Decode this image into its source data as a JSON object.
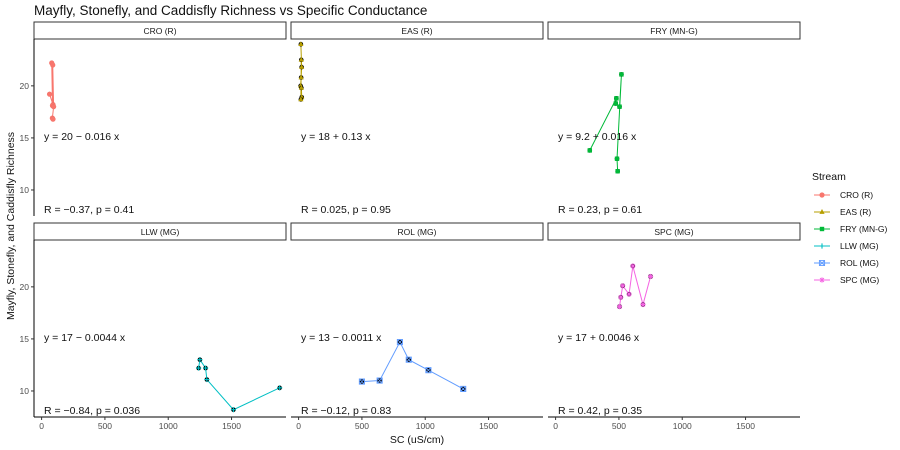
{
  "chart_data": {
    "type": "line",
    "title": "Mayfly, Stonefly, and Caddisfly Richness vs Specific Conductance",
    "xlabel": "SC (uS/cm)",
    "ylabel": "Mayfly, Stonefly, and Caddisfly Richness",
    "xlim": [
      -60,
      1930
    ],
    "ylim": [
      7.5,
      24.5
    ],
    "x_ticks": [
      0,
      500,
      1000,
      1500
    ],
    "y_ticks": [
      10,
      15,
      20
    ],
    "legend_title": "Stream",
    "legend_position": "right",
    "grid": false,
    "series": [
      {
        "name": "CRO (R)",
        "color": "#F8766D",
        "marker": "circle",
        "x": [
          63,
          90,
          80,
          86,
          88,
          95,
          85,
          90
        ],
        "y": [
          19.2,
          18.2,
          22.2,
          18.1,
          22.0,
          18.0,
          16.9,
          16.8
        ],
        "equation": "y = 20 − 0.016 x",
        "stats": "R = −0.37, p = 0.41"
      },
      {
        "name": "EAS (R)",
        "color": "#B79F00",
        "marker": "triangle",
        "x": [
          18,
          24,
          20,
          16,
          22,
          25,
          18,
          21
        ],
        "y": [
          24.0,
          21.8,
          20.8,
          20.0,
          19.8,
          18.9,
          18.7,
          22.5
        ],
        "equation": "y = 18 + 0.13 x",
        "stats": "R = 0.025, p = 0.95"
      },
      {
        "name": "FRY (MN-G)",
        "color": "#00BA38",
        "marker": "square",
        "x": [
          270,
          480,
          475,
          505,
          520,
          485,
          490
        ],
        "y": [
          13.8,
          18.8,
          18.3,
          18.0,
          21.1,
          13.0,
          11.8
        ],
        "equation": "y = 9.2 + 0.016 x",
        "stats": "R = 0.23, p = 0.61"
      },
      {
        "name": "LLW (MG)",
        "color": "#00BFC4",
        "marker": "plus",
        "x": [
          1240,
          1250,
          1295,
          1305,
          1515,
          1880
        ],
        "y": [
          12.2,
          13.0,
          12.2,
          11.1,
          8.2,
          10.3
        ],
        "equation": "y = 17 − 0.0044 x",
        "stats": "R = −0.84, p = 0.036"
      },
      {
        "name": "ROL (MG)",
        "color": "#619CFF",
        "marker": "boxed-x",
        "x": [
          500,
          640,
          800,
          870,
          1025,
          1300
        ],
        "y": [
          10.9,
          11.0,
          14.7,
          13.0,
          12.0,
          10.2
        ],
        "equation": "y = 13 − 0.0011 x",
        "stats": "R = −0.12, p = 0.83"
      },
      {
        "name": "SPC (MG)",
        "color": "#F564E3",
        "marker": "star",
        "x": [
          505,
          515,
          530,
          580,
          610,
          690,
          750
        ],
        "y": [
          18.1,
          19.0,
          20.1,
          19.3,
          22.0,
          18.3,
          21.0
        ],
        "equation": "y = 17 + 0.0046 x",
        "stats": "R = 0.42, p = 0.35"
      }
    ],
    "facets": [
      {
        "label": "CRO (R)",
        "series": 0
      },
      {
        "label": "EAS (R)",
        "series": 1
      },
      {
        "label": "FRY (MN-G)",
        "series": 2
      },
      {
        "label": "LLW (MG)",
        "series": 3
      },
      {
        "label": "ROL (MG)",
        "series": 4
      },
      {
        "label": "SPC (MG)",
        "series": 5
      }
    ]
  }
}
